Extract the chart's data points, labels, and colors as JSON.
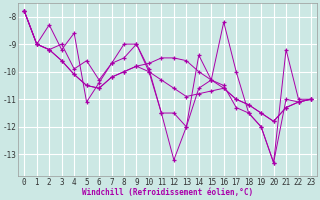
{
  "xlabel": "Windchill (Refroidissement éolien,°C)",
  "bg_color": "#cce8e4",
  "grid_color": "#ffffff",
  "line_color": "#aa00aa",
  "series": [
    [
      -7.8,
      -9.0,
      -8.3,
      -9.2,
      -8.6,
      -11.1,
      -10.4,
      -9.7,
      -9.0,
      -9.0,
      -9.9,
      -11.5,
      -13.2,
      -12.0,
      -9.4,
      -10.3,
      -8.2,
      -10.0,
      -11.5,
      -12.0,
      -13.3,
      -9.2,
      -11.0,
      -11.0
    ],
    [
      -7.8,
      -9.0,
      -9.2,
      -9.0,
      -9.9,
      -9.6,
      -10.3,
      -9.7,
      -9.5,
      -9.0,
      -10.0,
      -11.5,
      -11.5,
      -12.0,
      -10.6,
      -10.3,
      -10.5,
      -11.3,
      -11.5,
      -12.0,
      -13.3,
      -11.0,
      -11.1,
      -11.0
    ],
    [
      -7.8,
      -9.0,
      -9.2,
      -9.6,
      -10.1,
      -10.5,
      -10.6,
      -10.2,
      -10.0,
      -9.8,
      -10.0,
      -10.3,
      -10.6,
      -10.9,
      -10.8,
      -10.7,
      -10.6,
      -11.0,
      -11.2,
      -11.5,
      -11.8,
      -11.3,
      -11.1,
      -11.0
    ],
    [
      -7.8,
      -9.0,
      -9.2,
      -9.6,
      -10.1,
      -10.5,
      -10.6,
      -10.2,
      -10.0,
      -9.8,
      -9.7,
      -9.5,
      -9.5,
      -9.6,
      -10.0,
      -10.3,
      -10.6,
      -11.0,
      -11.2,
      -11.5,
      -11.8,
      -11.3,
      -11.1,
      -11.0
    ]
  ],
  "xlim": [
    -0.5,
    23.5
  ],
  "ylim": [
    -13.8,
    -7.5
  ],
  "yticks": [
    -13,
    -12,
    -11,
    -10,
    -9,
    -8
  ],
  "xticks": [
    0,
    1,
    2,
    3,
    4,
    5,
    6,
    7,
    8,
    9,
    10,
    11,
    12,
    13,
    14,
    15,
    16,
    17,
    18,
    19,
    20,
    21,
    22,
    23
  ],
  "xtick_labels": [
    "0",
    "1",
    "2",
    "3",
    "4",
    "5",
    "6",
    "7",
    "8",
    "9",
    "10",
    "11",
    "12",
    "13",
    "14",
    "15",
    "16",
    "17",
    "18",
    "19",
    "20",
    "21",
    "22",
    "23"
  ],
  "marker": "+",
  "markersize": 3.5,
  "linewidth": 0.7,
  "tick_fontsize": 5.5,
  "xlabel_fontsize": 5.5
}
